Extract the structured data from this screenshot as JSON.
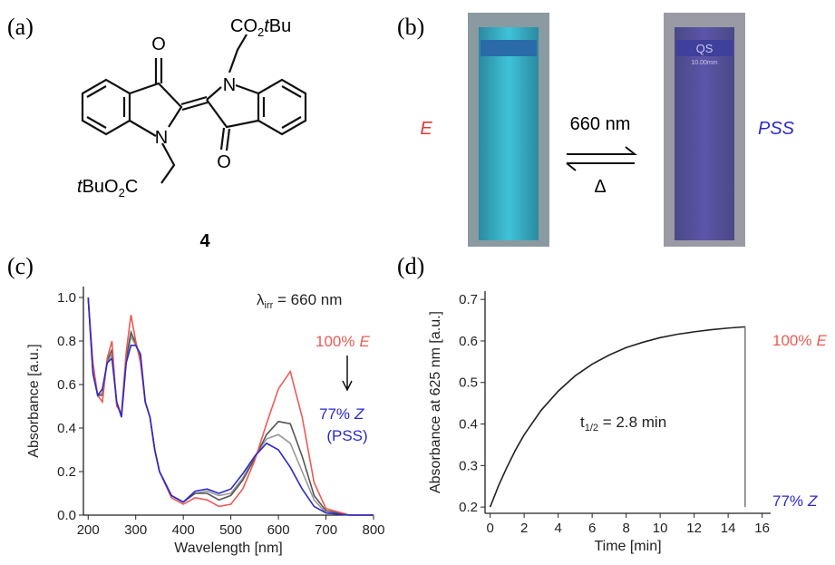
{
  "panel_a": {
    "label": "(a)",
    "o_top": "O",
    "o_bottom": "O",
    "n_left": "N",
    "n_right": "N",
    "top_substituent": {
      "main": "CO",
      "sub": "2",
      "italic": "t",
      "rest": "Bu"
    },
    "bottom_substituent": {
      "italic": "t",
      "main": "BuO",
      "sub": "2",
      "rest": "C"
    },
    "compound": "4"
  },
  "panel_b": {
    "label": "(b)",
    "left_state": "E",
    "right_state": "PSS",
    "forward": "660 nm",
    "backward": "Δ",
    "cuvette_mark": "QS",
    "cuvette_size": "10.00mm"
  },
  "panel_c": {
    "label": "(c)"
  },
  "panel_d": {
    "label": "(d)"
  },
  "chart_data": [
    {
      "type": "line",
      "xlabel": "Wavelength [nm]",
      "ylabel": "Absorbance [a.u.]",
      "xlim": [
        190,
        800
      ],
      "ylim": [
        0,
        1.05
      ],
      "xticks": [
        200,
        300,
        400,
        500,
        600,
        700,
        800
      ],
      "yticks": [
        {
          "value": 0,
          "label": "0.0"
        },
        0.2,
        0.4,
        0.6,
        0.8,
        {
          "value": 1,
          "label": "1.0"
        }
      ],
      "x": [
        200,
        210,
        220,
        230,
        240,
        250,
        260,
        270,
        280,
        290,
        300,
        310,
        320,
        330,
        340,
        350,
        375,
        400,
        425,
        450,
        475,
        500,
        525,
        550,
        575,
        600,
        625,
        650,
        675,
        700,
        750,
        800
      ],
      "series": [
        {
          "color": "#999999",
          "values": [
            1.0,
            0.66,
            0.55,
            0.56,
            0.7,
            0.74,
            0.52,
            0.46,
            0.71,
            0.82,
            0.78,
            0.73,
            0.52,
            0.45,
            0.3,
            0.2,
            0.09,
            0.06,
            0.1,
            0.11,
            0.09,
            0.1,
            0.17,
            0.27,
            0.35,
            0.37,
            0.33,
            0.2,
            0.07,
            0.01,
            0,
            0
          ]
        },
        {
          "color": "#555555",
          "values": [
            1.0,
            0.67,
            0.55,
            0.55,
            0.71,
            0.76,
            0.51,
            0.46,
            0.72,
            0.84,
            0.79,
            0.72,
            0.52,
            0.45,
            0.3,
            0.2,
            0.09,
            0.06,
            0.1,
            0.1,
            0.07,
            0.09,
            0.16,
            0.26,
            0.37,
            0.43,
            0.42,
            0.27,
            0.09,
            0.02,
            0,
            0
          ]
        },
        {
          "color": "#ee5a55",
          "values": [
            1.0,
            0.7,
            0.55,
            0.52,
            0.72,
            0.8,
            0.5,
            0.47,
            0.75,
            0.92,
            0.8,
            0.7,
            0.52,
            0.45,
            0.3,
            0.2,
            0.08,
            0.05,
            0.08,
            0.07,
            0.04,
            0.05,
            0.12,
            0.25,
            0.42,
            0.58,
            0.66,
            0.45,
            0.15,
            0.03,
            0,
            0
          ]
        },
        {
          "color": "#2a2acc",
          "values": [
            1.0,
            0.65,
            0.55,
            0.58,
            0.7,
            0.72,
            0.52,
            0.45,
            0.7,
            0.78,
            0.78,
            0.74,
            0.52,
            0.45,
            0.3,
            0.2,
            0.09,
            0.06,
            0.11,
            0.12,
            0.1,
            0.12,
            0.19,
            0.27,
            0.33,
            0.3,
            0.22,
            0.12,
            0.04,
            0.01,
            0,
            0
          ]
        }
      ],
      "annotations": {
        "lambda": "λ",
        "lambda_sub": "irr",
        "lambda_rest": " = 660 nm",
        "start_pct": "100%",
        "start_state": "E",
        "end_pct": "77%",
        "end_state": "Z",
        "end_note": "(PSS)"
      }
    },
    {
      "type": "line",
      "xlabel": "Time [min]",
      "ylabel": "Absorbance at 625 nm [a.u.]",
      "xlim": [
        -0.3,
        16.5
      ],
      "ylim": [
        0.185,
        0.72
      ],
      "xticks": [
        0,
        2,
        4,
        6,
        8,
        10,
        12,
        14,
        16
      ],
      "yticks": [
        0.2,
        0.3,
        0.4,
        0.5,
        0.6,
        0.7
      ],
      "x": [
        0,
        0.5,
        1,
        1.5,
        2,
        3,
        4,
        5,
        6,
        7,
        8,
        9,
        10,
        11,
        12,
        13,
        14,
        15
      ],
      "series": [
        {
          "color": "#222222",
          "values": [
            0.2,
            0.252,
            0.297,
            0.338,
            0.374,
            0.433,
            0.479,
            0.516,
            0.544,
            0.566,
            0.584,
            0.597,
            0.608,
            0.616,
            0.622,
            0.627,
            0.631,
            0.634
          ]
        }
      ],
      "annotations": {
        "t": "t",
        "t_sub": "1/2",
        "t_rest": " = 2.8 min",
        "start_pct": "100%",
        "start_state": "E",
        "end_pct": "77%",
        "end_state": "Z"
      }
    }
  ]
}
